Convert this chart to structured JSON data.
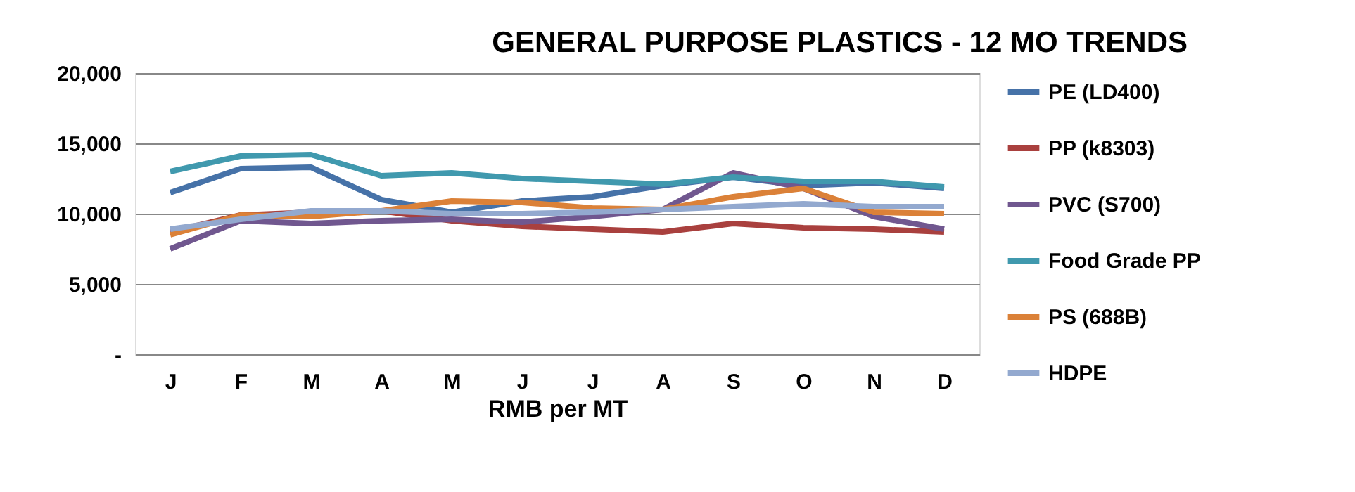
{
  "chart_data": {
    "type": "line",
    "title": "GENERAL PURPOSE PLASTICS - 12 MO TRENDS",
    "xlabel": "RMB per MT",
    "categories": [
      "J",
      "F",
      "M",
      "A",
      "M",
      "J",
      "J",
      "A",
      "S",
      "O",
      "N",
      "D"
    ],
    "series": [
      {
        "name": "PE (LD400)",
        "color": "#4672a8",
        "values": [
          11500,
          13200,
          13300,
          11000,
          10100,
          10900,
          11200,
          12000,
          12600,
          12000,
          12200,
          11800
        ]
      },
      {
        "name": "PP (k8303)",
        "color": "#a9403e",
        "values": [
          8700,
          9900,
          10100,
          10200,
          9500,
          9100,
          8900,
          8700,
          9300,
          9000,
          8900,
          8700
        ]
      },
      {
        "name": "PVC (S700)",
        "color": "#70578f",
        "values": [
          7500,
          9500,
          9300,
          9500,
          9600,
          9400,
          9800,
          10300,
          12900,
          11800,
          9800,
          8900
        ]
      },
      {
        "name": "Food Grade PP",
        "color": "#4099ae",
        "values": [
          13000,
          14100,
          14200,
          12700,
          12900,
          12500,
          12300,
          12100,
          12600,
          12300,
          12300,
          11900
        ]
      },
      {
        "name": "PS (688B)",
        "color": "#db8138",
        "values": [
          8500,
          9900,
          9800,
          10200,
          10900,
          10800,
          10400,
          10300,
          11200,
          11800,
          10100,
          10000
        ]
      },
      {
        "name": "HDPE",
        "color": "#93a9cf",
        "values": [
          8900,
          9600,
          10200,
          10200,
          10000,
          10000,
          10100,
          10300,
          10500,
          10700,
          10500,
          10500
        ]
      }
    ],
    "ylim": [
      0,
      20000
    ],
    "yticks": [
      {
        "value": 0,
        "label": "-"
      },
      {
        "value": 5000,
        "label": "5,000"
      },
      {
        "value": 10000,
        "label": "10,000"
      },
      {
        "value": 15000,
        "label": "15,000"
      },
      {
        "value": 20000,
        "label": "20,000"
      }
    ],
    "grid": "y",
    "legend": "right",
    "marker": "none",
    "line_style": "solid"
  }
}
